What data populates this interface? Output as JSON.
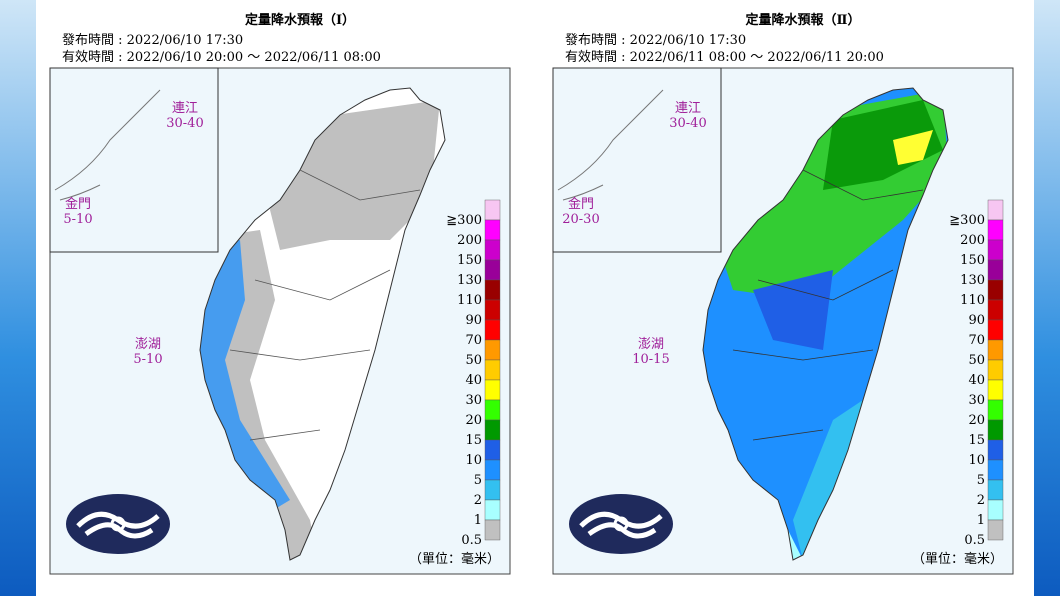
{
  "panels": [
    {
      "title": "定量降水預報（Ⅰ）",
      "issued": "發布時間 : 2022/06/10 17:30",
      "valid": "有效時間 : 2022/06/10 20:00 ～ 2022/06/11 08:00",
      "places": [
        {
          "name": "連江",
          "range": "30-40"
        },
        {
          "name": "金門",
          "range": "5-10"
        },
        {
          "name": "澎湖",
          "range": "5-10"
        }
      ],
      "unit": "（單位：毫米）"
    },
    {
      "title": "定量降水預報（Ⅱ）",
      "issued": "發布時間 : 2022/06/10 17:30",
      "valid": "有效時間 : 2022/06/11 08:00 ～ 2022/06/11 20:00",
      "places": [
        {
          "name": "連江",
          "range": "30-40"
        },
        {
          "name": "金門",
          "range": "20-30"
        },
        {
          "name": "澎湖",
          "range": "10-15"
        }
      ],
      "unit": "（單位：毫米）"
    }
  ],
  "legend": {
    "labels": [
      "≧300",
      "200",
      "150",
      "130",
      "110",
      "90",
      "70",
      "50",
      "40",
      "30",
      "20",
      "15",
      "10",
      "5",
      "2",
      "1",
      "0.5"
    ],
    "colors": [
      "#f7c6f2",
      "#ff00ff",
      "#cc00cc",
      "#990099",
      "#990000",
      "#cc0000",
      "#ff0000",
      "#ff9900",
      "#ffcc00",
      "#ffff00",
      "#33ff00",
      "#009900",
      "#1f5fe6",
      "#1e90ff",
      "#33c0f0",
      "#a8ffff",
      "#c0c0c0"
    ]
  }
}
